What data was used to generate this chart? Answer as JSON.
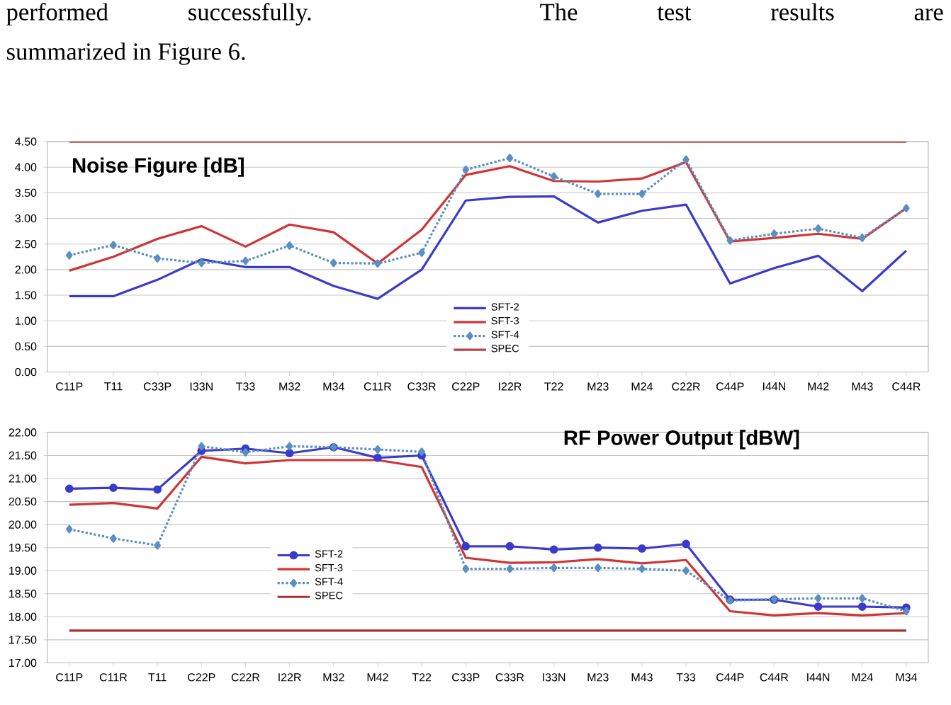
{
  "chart_data": [
    {
      "type": "line",
      "title": "Noise Figure [dB]",
      "annotations": [
        "performed successfully. The test results are",
        "summarized in Figure 6."
      ],
      "categories": [
        "C11P",
        "T11",
        "C33P",
        "I33N",
        "T33",
        "M32",
        "M34",
        "C11R",
        "C33R",
        "C22P",
        "I22R",
        "T22",
        "M23",
        "M24",
        "C22R",
        "C44P",
        "I44N",
        "M42",
        "M43",
        "C44R"
      ],
      "series": [
        {
          "name": "SFT-2",
          "color": "#3a3acc",
          "line_style": "solid",
          "marker": "none",
          "values": [
            1.48,
            1.48,
            1.8,
            2.2,
            2.05,
            2.05,
            1.68,
            1.43,
            2.0,
            3.35,
            3.42,
            3.43,
            2.92,
            3.15,
            3.27,
            1.73,
            2.03,
            2.27,
            1.58,
            2.37
          ]
        },
        {
          "name": "SFT-3",
          "color": "#d03434",
          "line_style": "solid",
          "marker": "none",
          "values": [
            1.98,
            2.25,
            2.6,
            2.85,
            2.45,
            2.88,
            2.73,
            2.12,
            2.78,
            3.85,
            4.02,
            3.73,
            3.72,
            3.78,
            4.1,
            2.55,
            2.62,
            2.7,
            2.6,
            3.2
          ]
        },
        {
          "name": "SFT-4",
          "color": "#5b8fc0",
          "line_style": "dotted",
          "marker": "diamond",
          "values": [
            2.28,
            2.48,
            2.22,
            2.13,
            2.17,
            2.47,
            2.13,
            2.12,
            2.33,
            3.95,
            4.18,
            3.82,
            3.48,
            3.48,
            4.15,
            2.57,
            2.7,
            2.8,
            2.62,
            3.2
          ]
        },
        {
          "name": "SPEC",
          "color": "#c04040",
          "line_style": "solid",
          "marker": "none",
          "values": [
            4.5,
            4.5,
            4.5,
            4.5,
            4.5,
            4.5,
            4.5,
            4.5,
            4.5,
            4.5,
            4.5,
            4.5,
            4.5,
            4.5,
            4.5,
            4.5,
            4.5,
            4.5,
            4.5,
            4.5
          ]
        }
      ],
      "ylim": [
        0,
        4.5
      ],
      "yticks": [
        {
          "value": 0,
          "label": "0.00"
        },
        {
          "value": 0.5,
          "label": "0.50"
        },
        {
          "value": 1,
          "label": "1.00"
        },
        {
          "value": 1.5,
          "label": "1.50"
        },
        {
          "value": 2,
          "label": "2.00"
        },
        {
          "value": 2.5,
          "label": "2.50"
        },
        {
          "value": 3,
          "label": "3.00"
        },
        {
          "value": 3.5,
          "label": "3.50"
        },
        {
          "value": 4,
          "label": "4.00"
        },
        {
          "value": 4.5,
          "label": "4.50"
        }
      ],
      "grid": "y",
      "legend": "bottom"
    },
    {
      "type": "line",
      "title": "RF Power Output [dBW]",
      "categories": [
        "C11P",
        "C11R",
        "T11",
        "C22P",
        "C22R",
        "I22R",
        "M32",
        "M42",
        "T22",
        "C33P",
        "C33R",
        "I33N",
        "M23",
        "M43",
        "T33",
        "C44P",
        "C44R",
        "I44N",
        "M24",
        "M34"
      ],
      "series": [
        {
          "name": "SFT-2",
          "color": "#3a3acc",
          "line_style": "solid",
          "marker": "circle",
          "values": [
            20.78,
            20.8,
            20.76,
            21.6,
            21.65,
            21.55,
            21.68,
            21.45,
            21.5,
            19.53,
            19.53,
            19.46,
            19.5,
            19.48,
            19.58,
            18.37,
            18.37,
            18.22,
            18.22,
            18.2
          ]
        },
        {
          "name": "SFT-3",
          "color": "#d03434",
          "line_style": "solid",
          "marker": "none",
          "values": [
            20.43,
            20.47,
            20.35,
            21.47,
            21.33,
            21.4,
            21.4,
            21.4,
            21.25,
            19.28,
            19.17,
            19.18,
            19.25,
            19.16,
            19.23,
            18.12,
            18.03,
            18.08,
            18.03,
            18.08
          ]
        },
        {
          "name": "SFT-4",
          "color": "#5b8fc0",
          "line_style": "dotted",
          "marker": "diamond",
          "values": [
            19.9,
            19.7,
            19.55,
            21.7,
            21.57,
            21.7,
            21.68,
            21.63,
            21.58,
            19.04,
            19.04,
            19.06,
            19.06,
            19.04,
            19.0,
            18.35,
            18.38,
            18.4,
            18.4,
            18.12
          ]
        },
        {
          "name": "SPEC",
          "color": "#a83232",
          "line_style": "solid",
          "marker": "none",
          "values": [
            17.7,
            17.7,
            17.7,
            17.7,
            17.7,
            17.7,
            17.7,
            17.7,
            17.7,
            17.7,
            17.7,
            17.7,
            17.7,
            17.7,
            17.7,
            17.7,
            17.7,
            17.7,
            17.7,
            17.7
          ]
        }
      ],
      "ylim": [
        17,
        22
      ],
      "yticks": [
        {
          "value": 17,
          "label": "17.00"
        },
        {
          "value": 17.5,
          "label": "17.50"
        },
        {
          "value": 18,
          "label": "18.00"
        },
        {
          "value": 18.5,
          "label": "18.50"
        },
        {
          "value": 19,
          "label": "19.00"
        },
        {
          "value": 19.5,
          "label": "19.50"
        },
        {
          "value": 20,
          "label": "20.00"
        },
        {
          "value": 20.5,
          "label": "20.50"
        },
        {
          "value": 21,
          "label": "21.00"
        },
        {
          "value": 21.5,
          "label": "21.50"
        },
        {
          "value": 22,
          "label": "22.00"
        }
      ],
      "grid": "y",
      "legend": "left"
    }
  ]
}
